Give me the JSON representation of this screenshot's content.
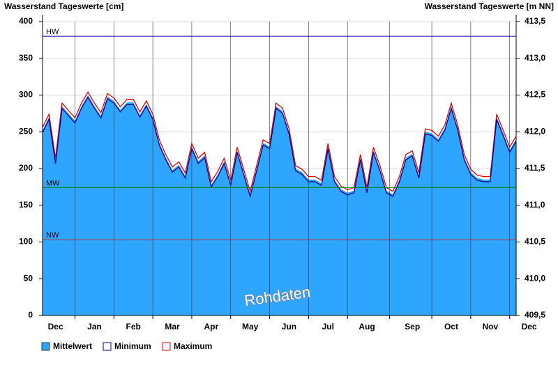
{
  "chart_data": {
    "type": "area",
    "title": "Wasserstand Tageswerte [cm]",
    "y2_title": "Wasserstand Tageswerte [m NN]",
    "annotation": "Rohdaten",
    "categories": [
      null,
      null,
      "Dec",
      null,
      null,
      null,
      null,
      null,
      "Jan",
      null,
      null,
      null,
      null,
      null,
      "Feb",
      null,
      null,
      null,
      null,
      null,
      "Mar",
      null,
      null,
      null,
      null,
      null,
      "Apr",
      null,
      null,
      null,
      null,
      null,
      "May",
      null,
      null,
      null,
      null,
      null,
      "Jun",
      null,
      null,
      null,
      null,
      null,
      "Jul",
      null,
      null,
      null,
      null,
      null,
      "Aug",
      null,
      null,
      null,
      null,
      null,
      null,
      "Sep",
      null,
      null,
      null,
      null,
      null,
      "Oct",
      null,
      null,
      null,
      null,
      null,
      "Nov",
      null,
      null,
      null,
      null,
      null,
      "Dec"
    ],
    "series": [
      {
        "name": "Mittelwert",
        "color": "#2ea6ff",
        "values": [
          252,
          270,
          210,
          285,
          275,
          265,
          285,
          300,
          285,
          272,
          298,
          292,
          280,
          290,
          290,
          273,
          288,
          270,
          235,
          215,
          198,
          205,
          190,
          230,
          210,
          218,
          178,
          192,
          210,
          180,
          225,
          195,
          165,
          200,
          235,
          230,
          285,
          278,
          250,
          200,
          195,
          185,
          185,
          180,
          230,
          185,
          172,
          167,
          170,
          215,
          170,
          225,
          200,
          170,
          165,
          185,
          215,
          220,
          190,
          250,
          248,
          240,
          255,
          285,
          255,
          215,
          195,
          187,
          185,
          185,
          270,
          248,
          225,
          240,
          null,
          null
        ]
      },
      {
        "name": "Minimum",
        "color": "#00008b",
        "values": [
          249,
          267,
          207,
          282,
          272,
          262,
          282,
          297,
          282,
          269,
          295,
          289,
          277,
          287,
          287,
          270,
          285,
          267,
          232,
          212,
          195,
          202,
          187,
          227,
          207,
          215,
          175,
          189,
          207,
          177,
          222,
          192,
          162,
          197,
          232,
          227,
          282,
          275,
          247,
          197,
          192,
          182,
          182,
          177,
          227,
          182,
          169,
          164,
          167,
          212,
          167,
          222,
          197,
          167,
          162,
          182,
          212,
          217,
          187,
          247,
          245,
          237,
          252,
          282,
          252,
          212,
          192,
          184,
          182,
          182,
          267,
          245,
          222,
          237,
          null,
          null
        ]
      },
      {
        "name": "Maximum",
        "color": "#e00000",
        "values": [
          256,
          274,
          214,
          289,
          279,
          269,
          289,
          304,
          289,
          276,
          302,
          296,
          284,
          294,
          294,
          277,
          292,
          274,
          239,
          219,
          202,
          209,
          194,
          234,
          214,
          222,
          182,
          196,
          214,
          184,
          229,
          199,
          169,
          204,
          239,
          234,
          289,
          282,
          254,
          204,
          199,
          189,
          189,
          184,
          234,
          189,
          176,
          171,
          174,
          219,
          174,
          229,
          204,
          174,
          169,
          189,
          219,
          224,
          194,
          254,
          252,
          244,
          259,
          289,
          259,
          219,
          199,
          191,
          189,
          189,
          274,
          252,
          229,
          244,
          null,
          null
        ]
      }
    ],
    "reference_lines": [
      {
        "label": "HW",
        "value": 380,
        "color": "#00008b"
      },
      {
        "label": "MW",
        "value": 174,
        "color": "#008000"
      },
      {
        "label": "NW",
        "value": 103,
        "color": "#c03030"
      }
    ],
    "ylim": [
      0,
      400
    ],
    "yticks": [
      0,
      50,
      100,
      150,
      200,
      250,
      300,
      350,
      400
    ],
    "y2lim": [
      409.5,
      413.5
    ],
    "y2ticks": [
      {
        "value": 409.5,
        "label": "409,5"
      },
      {
        "value": 410,
        "label": "410,0"
      },
      {
        "value": 410.5,
        "label": "410,5"
      },
      {
        "value": 411,
        "label": "411,0"
      },
      {
        "value": 411.5,
        "label": "411,5"
      },
      {
        "value": 412,
        "label": "412,0"
      },
      {
        "value": 412.5,
        "label": "412,5"
      },
      {
        "value": 413,
        "label": "413,0"
      },
      {
        "value": 413.5,
        "label": "413,5"
      }
    ],
    "grid": true
  }
}
